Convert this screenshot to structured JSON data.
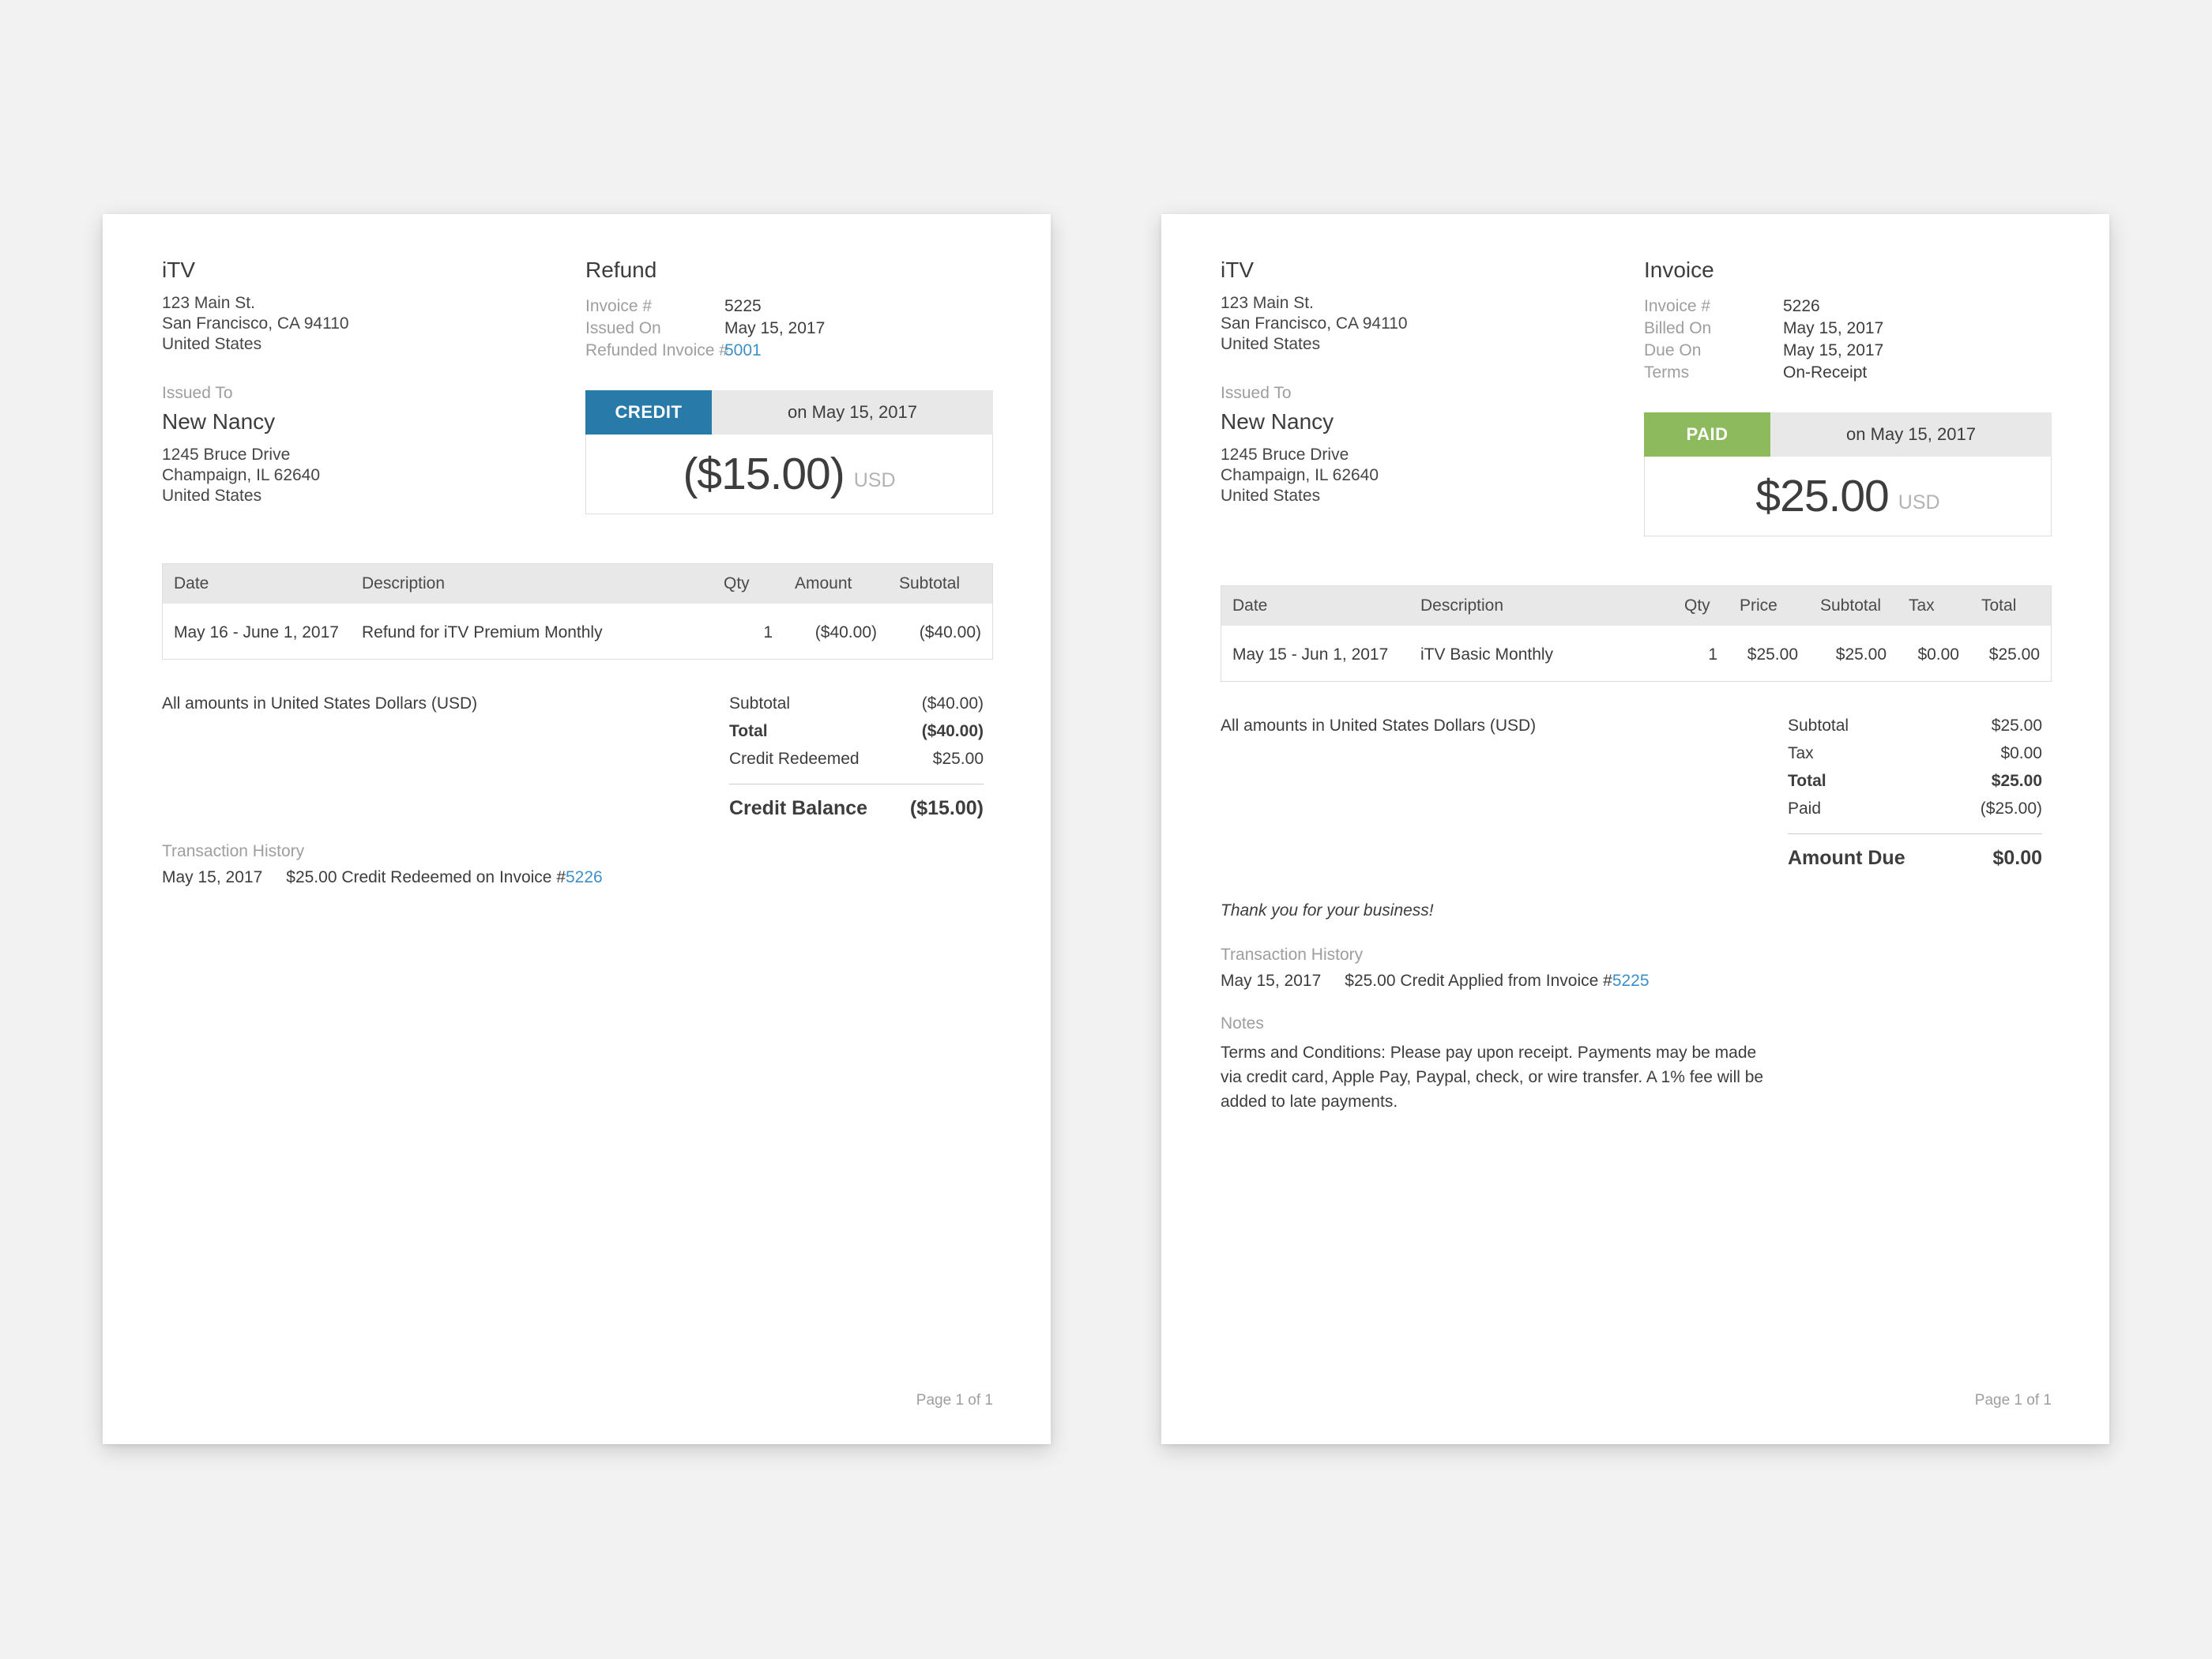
{
  "page": {
    "background": "#f2f2f3"
  },
  "colors": {
    "credit_badge": "#287aa9",
    "paid_badge": "#8eba5e",
    "link": "#3d8fc6",
    "header_bg": "#e8e8e8"
  },
  "refund": {
    "company": {
      "name": "iTV",
      "address": [
        "123 Main St.",
        "San Francisco, CA 94110",
        "United States"
      ]
    },
    "issued_to_label": "Issued To",
    "customer": {
      "name": "New Nancy",
      "address": [
        "1245 Bruce Drive",
        "Champaign, IL 62640",
        "United States"
      ]
    },
    "title": "Refund",
    "meta": [
      {
        "label": "Invoice #",
        "value": "5225"
      },
      {
        "label": "Issued On",
        "value": "May 15, 2017"
      },
      {
        "label": "Refunded Invoice #",
        "value": "5001"
      }
    ],
    "status": {
      "badge": "CREDIT",
      "date": "on May 15, 2017",
      "amount": "($15.00)",
      "currency": "USD"
    },
    "table": {
      "headers": [
        "Date",
        "Description",
        "Qty",
        "Amount",
        "Subtotal"
      ],
      "rows": [
        [
          "May 16 - June 1, 2017",
          "Refund for iTV Premium Monthly",
          "1",
          "($40.00)",
          "($40.00)"
        ]
      ]
    },
    "amounts_note": "All amounts in United States Dollars (USD)",
    "summary": [
      {
        "label": "Subtotal",
        "value": "($40.00)"
      },
      {
        "label": "Total",
        "value": "($40.00)"
      },
      {
        "label": "Credit Redeemed",
        "value": "$25.00"
      }
    ],
    "summary_total": {
      "label": "Credit Balance",
      "value": "($15.00)"
    },
    "transaction_history": {
      "label": "Transaction History",
      "entry": {
        "date": "May 15, 2017",
        "text": "$25.00 Credit Redeemed on Invoice #",
        "link": "5226"
      }
    },
    "footer": "Page 1 of 1"
  },
  "invoice": {
    "company": {
      "name": "iTV",
      "address": [
        "123 Main St.",
        "San Francisco, CA 94110",
        "United States"
      ]
    },
    "issued_to_label": "Issued To",
    "customer": {
      "name": "New Nancy",
      "address": [
        "1245 Bruce Drive",
        "Champaign, IL 62640",
        "United States"
      ]
    },
    "title": "Invoice",
    "meta": [
      {
        "label": "Invoice #",
        "value": "5226"
      },
      {
        "label": "Billed On",
        "value": "May 15, 2017"
      },
      {
        "label": "Due On",
        "value": "May 15, 2017"
      },
      {
        "label": "Terms",
        "value": "On-Receipt"
      }
    ],
    "status": {
      "badge": "PAID",
      "date": "on May 15, 2017",
      "amount": "$25.00",
      "currency": "USD"
    },
    "table": {
      "headers": [
        "Date",
        "Description",
        "Qty",
        "Price",
        "Subtotal",
        "Tax",
        "Total"
      ],
      "rows": [
        [
          "May 15 - Jun 1, 2017",
          "iTV Basic Monthly",
          "1",
          "$25.00",
          "$25.00",
          "$0.00",
          "$25.00"
        ]
      ]
    },
    "amounts_note": "All amounts in United States Dollars (USD)",
    "summary": [
      {
        "label": "Subtotal",
        "value": "$25.00"
      },
      {
        "label": "Tax",
        "value": "$0.00"
      },
      {
        "label": "Total",
        "value": "$25.00"
      },
      {
        "label": "Paid",
        "value": "($25.00)"
      }
    ],
    "summary_total": {
      "label": "Amount Due",
      "value": "$0.00"
    },
    "thank_you": "Thank you for your business!",
    "transaction_history": {
      "label": "Transaction History",
      "entry": {
        "date": "May 15, 2017",
        "text": "$25.00 Credit Applied from Invoice #",
        "link": "5225"
      }
    },
    "notes": {
      "label": "Notes",
      "text": "Terms and Conditions: Please pay upon receipt. Payments may be made via credit card, Apple Pay, Paypal, check, or wire transfer. A 1% fee will be added to late payments."
    },
    "footer": "Page 1 of 1"
  }
}
